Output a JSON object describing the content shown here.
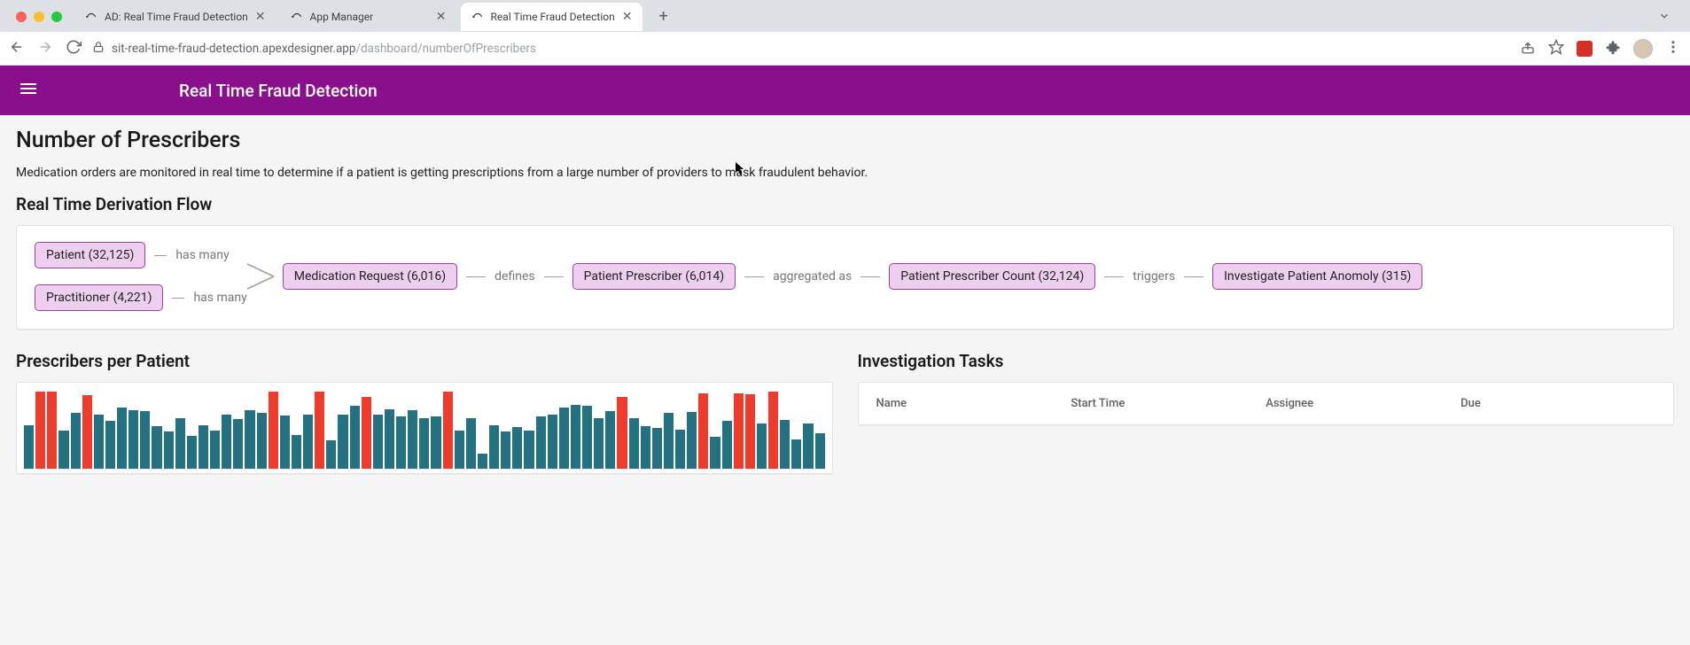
{
  "browser": {
    "traffic_light_colors": [
      "#ff5f57",
      "#febc2e",
      "#28c840"
    ],
    "tabs": [
      {
        "title": "AD: Real Time Fraud Detection",
        "active": false
      },
      {
        "title": "App Manager",
        "active": false
      },
      {
        "title": "Real Time Fraud Detection",
        "active": true
      }
    ],
    "url_host": "sit-real-time-fraud-detection.apexdesigner.app",
    "url_path": "/dashboard/numberOfPrescribers",
    "extension_color": "#d93025"
  },
  "app": {
    "bar_color": "#8a0f8d",
    "title": "Real Time Fraud Detection"
  },
  "page": {
    "heading": "Number of Prescribers",
    "description_pre": "Medication orders are monitored in real time to determine if a patient is getting prescriptions from a large number of providers to m",
    "description_post": "sk fraudulent behavior.",
    "section_flow": "Real Time Derivation Flow",
    "section_chart": "Prescribers per Patient",
    "section_tasks": "Investigation Tasks"
  },
  "flow": {
    "node_fill": "#eecff0",
    "node_border": "#9e3fa4",
    "left": [
      {
        "label": "Patient (32,125)",
        "edge": "has many"
      },
      {
        "label": "Practitioner (4,221)",
        "edge": "has many"
      }
    ],
    "chain": [
      {
        "node": "Medication Request (6,016)",
        "edge_after": "defines"
      },
      {
        "node": "Patient Prescriber (6,014)",
        "edge_after": "aggregated as"
      },
      {
        "node": "Patient Prescriber Count (32,124)",
        "edge_after": "triggers"
      },
      {
        "node": "Investigate Patient Anomoly (315)",
        "edge_after": null
      }
    ]
  },
  "chart": {
    "normal_color": "#247182",
    "anomaly_color": "#ef3b2c",
    "background": "#ffffff",
    "max_value": 90,
    "bars": [
      {
        "v": 50,
        "a": false
      },
      {
        "v": 88,
        "a": true
      },
      {
        "v": 88,
        "a": true
      },
      {
        "v": 44,
        "a": false
      },
      {
        "v": 64,
        "a": false
      },
      {
        "v": 84,
        "a": true
      },
      {
        "v": 62,
        "a": false
      },
      {
        "v": 55,
        "a": false
      },
      {
        "v": 70,
        "a": false
      },
      {
        "v": 67,
        "a": false
      },
      {
        "v": 66,
        "a": false
      },
      {
        "v": 49,
        "a": false
      },
      {
        "v": 42,
        "a": false
      },
      {
        "v": 58,
        "a": false
      },
      {
        "v": 37,
        "a": false
      },
      {
        "v": 50,
        "a": false
      },
      {
        "v": 43,
        "a": false
      },
      {
        "v": 62,
        "a": false
      },
      {
        "v": 57,
        "a": false
      },
      {
        "v": 67,
        "a": false
      },
      {
        "v": 64,
        "a": false
      },
      {
        "v": 88,
        "a": true
      },
      {
        "v": 61,
        "a": false
      },
      {
        "v": 38,
        "a": false
      },
      {
        "v": 62,
        "a": false
      },
      {
        "v": 88,
        "a": true
      },
      {
        "v": 32,
        "a": false
      },
      {
        "v": 62,
        "a": false
      },
      {
        "v": 72,
        "a": false
      },
      {
        "v": 82,
        "a": true
      },
      {
        "v": 62,
        "a": false
      },
      {
        "v": 68,
        "a": false
      },
      {
        "v": 60,
        "a": false
      },
      {
        "v": 67,
        "a": false
      },
      {
        "v": 58,
        "a": false
      },
      {
        "v": 60,
        "a": false
      },
      {
        "v": 88,
        "a": true
      },
      {
        "v": 44,
        "a": false
      },
      {
        "v": 58,
        "a": false
      },
      {
        "v": 17,
        "a": false
      },
      {
        "v": 50,
        "a": false
      },
      {
        "v": 42,
        "a": false
      },
      {
        "v": 48,
        "a": false
      },
      {
        "v": 44,
        "a": false
      },
      {
        "v": 60,
        "a": false
      },
      {
        "v": 62,
        "a": false
      },
      {
        "v": 70,
        "a": false
      },
      {
        "v": 73,
        "a": false
      },
      {
        "v": 72,
        "a": false
      },
      {
        "v": 58,
        "a": false
      },
      {
        "v": 66,
        "a": false
      },
      {
        "v": 82,
        "a": true
      },
      {
        "v": 58,
        "a": false
      },
      {
        "v": 49,
        "a": false
      },
      {
        "v": 47,
        "a": false
      },
      {
        "v": 64,
        "a": false
      },
      {
        "v": 45,
        "a": false
      },
      {
        "v": 65,
        "a": false
      },
      {
        "v": 86,
        "a": true
      },
      {
        "v": 36,
        "a": false
      },
      {
        "v": 55,
        "a": false
      },
      {
        "v": 86,
        "a": true
      },
      {
        "v": 85,
        "a": true
      },
      {
        "v": 52,
        "a": false
      },
      {
        "v": 88,
        "a": true
      },
      {
        "v": 56,
        "a": false
      },
      {
        "v": 33,
        "a": false
      },
      {
        "v": 52,
        "a": false
      },
      {
        "v": 40,
        "a": false
      }
    ]
  },
  "tasks": {
    "columns": [
      "Name",
      "Start Time",
      "Assignee",
      "Due"
    ],
    "rows": []
  }
}
